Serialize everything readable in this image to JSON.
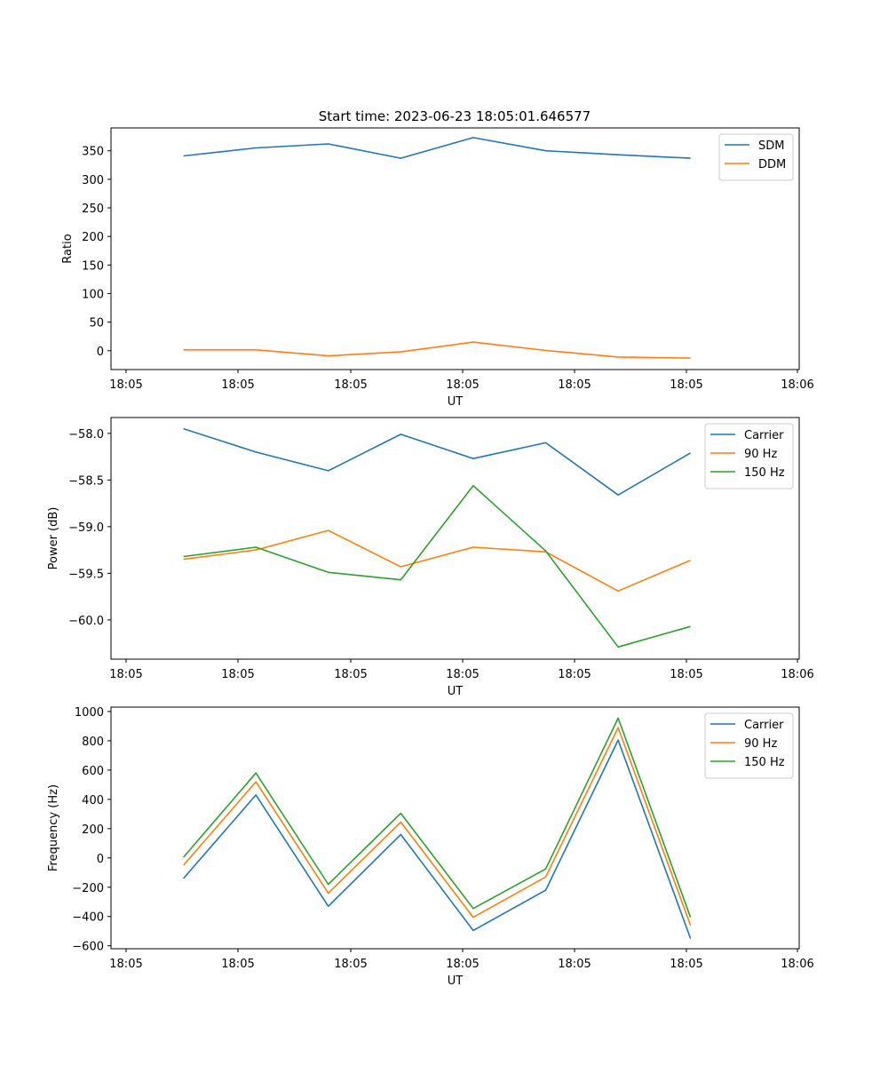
{
  "figure": {
    "title": "Start time: 2023-06-23 18:05:01.646577"
  },
  "colors": {
    "blue": "#1f77b4",
    "orange": "#ff7f0e",
    "green": "#2ca02c"
  },
  "chart_data": [
    {
      "type": "line",
      "title": "Start time: 2023-06-23 18:05:01.646577",
      "xlabel": "UT",
      "ylabel": "Ratio",
      "x": [
        1,
        2,
        3,
        4,
        5,
        6,
        7,
        8
      ],
      "xticks": [
        "18:05",
        "18:05",
        "18:05",
        "18:05",
        "18:05",
        "18:05",
        "18:06"
      ],
      "xlim": [
        0,
        9.5
      ],
      "ylim": [
        -33,
        390
      ],
      "yticks": [
        0,
        50,
        100,
        150,
        200,
        250,
        300,
        350
      ],
      "grid": false,
      "legend_position": "top-right",
      "series": [
        {
          "name": "SDM",
          "color": "#1f77b4",
          "values": [
            341,
            355,
            362,
            337,
            373,
            350,
            343,
            337
          ]
        },
        {
          "name": "DDM",
          "color": "#ff7f0e",
          "values": [
            1.5,
            1.5,
            -9,
            -2,
            15,
            0.5,
            -11,
            -13
          ]
        }
      ]
    },
    {
      "type": "line",
      "title": "",
      "xlabel": "UT",
      "ylabel": "Power (dB)",
      "x": [
        1,
        2,
        3,
        4,
        5,
        6,
        7,
        8
      ],
      "xticks": [
        "18:05",
        "18:05",
        "18:05",
        "18:05",
        "18:05",
        "18:05",
        "18:06"
      ],
      "xlim": [
        0,
        9.5
      ],
      "ylim": [
        -60.42,
        -57.83
      ],
      "yticks": [
        -58.0,
        -58.5,
        -59.0,
        -59.5,
        -60.0
      ],
      "grid": false,
      "legend_position": "top-right",
      "series": [
        {
          "name": "Carrier",
          "color": "#1f77b4",
          "values": [
            -57.95,
            -58.2,
            -58.4,
            -58.01,
            -58.27,
            -58.1,
            -58.66,
            -58.21
          ]
        },
        {
          "name": "90 Hz",
          "color": "#ff7f0e",
          "values": [
            -59.35,
            -59.25,
            -59.04,
            -59.43,
            -59.22,
            -59.27,
            -59.69,
            -59.36
          ]
        },
        {
          "name": "150 Hz",
          "color": "#2ca02c",
          "values": [
            -59.32,
            -59.22,
            -59.49,
            -59.57,
            -58.56,
            -59.26,
            -60.29,
            -60.07
          ]
        }
      ]
    },
    {
      "type": "line",
      "title": "",
      "xlabel": "UT",
      "ylabel": "Frequency (Hz)",
      "x": [
        1,
        2,
        3,
        4,
        5,
        6,
        7,
        8
      ],
      "xticks": [
        "18:05",
        "18:05",
        "18:05",
        "18:05",
        "18:05",
        "18:05",
        "18:06"
      ],
      "xlim": [
        0,
        9.5
      ],
      "ylim": [
        -620,
        1030
      ],
      "yticks": [
        -600,
        -400,
        -200,
        0,
        200,
        400,
        600,
        800,
        1000
      ],
      "grid": false,
      "legend_position": "top-right",
      "series": [
        {
          "name": "Carrier",
          "color": "#1f77b4",
          "values": [
            -140,
            430,
            -330,
            160,
            -495,
            -220,
            805,
            -550
          ]
        },
        {
          "name": "90 Hz",
          "color": "#ff7f0e",
          "values": [
            -50,
            520,
            -240,
            245,
            -405,
            -130,
            890,
            -460
          ]
        },
        {
          "name": "150 Hz",
          "color": "#2ca02c",
          "values": [
            5,
            580,
            -180,
            305,
            -345,
            -75,
            955,
            -405
          ]
        }
      ]
    }
  ]
}
